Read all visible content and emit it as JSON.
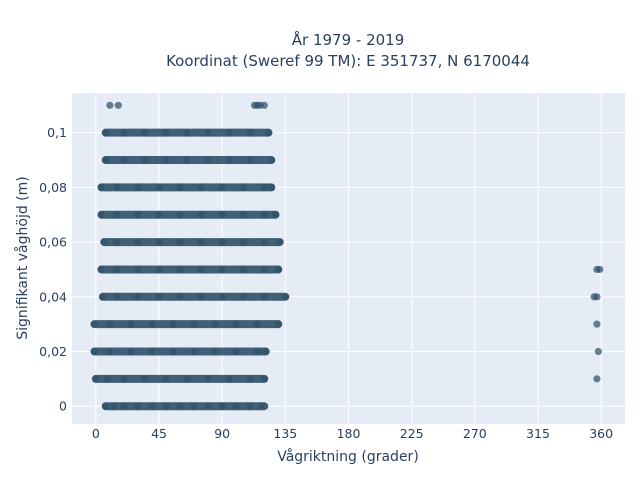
{
  "chart_data": {
    "type": "scatter",
    "title_line1": "År 1979 - 2019",
    "title_line2": "Koordinat (Sweref 99 TM): E 351737, N 6170044",
    "xlabel": "Vågriktning (grader)",
    "ylabel": "Signifikant våghöjd (m)",
    "xlim": [
      -17,
      377
    ],
    "ylim": [
      -0.0065,
      0.1145
    ],
    "xticks": [
      0,
      45,
      90,
      135,
      180,
      225,
      270,
      315,
      360
    ],
    "xtick_labels": [
      "0",
      "45",
      "90",
      "135",
      "180",
      "225",
      "270",
      "315",
      "360"
    ],
    "yticks": [
      0,
      0.02,
      0.04,
      0.06,
      0.08,
      0.1
    ],
    "ytick_labels": [
      "0",
      "0,02",
      "0,04",
      "0,06",
      "0,08",
      "0,1"
    ],
    "grid": true,
    "marker_color": "#2f5168",
    "plot_bg": "#e5ecf6",
    "series": [
      {
        "points": [
          [
            7,
            0
          ],
          [
            13,
            0
          ],
          [
            20,
            0
          ],
          [
            30,
            0
          ],
          [
            40,
            0
          ],
          [
            50,
            0
          ],
          [
            60,
            0
          ],
          [
            70,
            0
          ],
          [
            80,
            0
          ],
          [
            90,
            0
          ],
          [
            100,
            0
          ],
          [
            110,
            0
          ],
          [
            118,
            0
          ],
          [
            0,
            0.01
          ],
          [
            8,
            0.01
          ],
          [
            20,
            0.01
          ],
          [
            35,
            0.01
          ],
          [
            50,
            0.01
          ],
          [
            65,
            0.01
          ],
          [
            80,
            0.01
          ],
          [
            95,
            0.01
          ],
          [
            110,
            0.01
          ],
          [
            120,
            0.01
          ],
          [
            357,
            0.01
          ],
          [
            -1,
            0.02
          ],
          [
            10,
            0.02
          ],
          [
            25,
            0.02
          ],
          [
            40,
            0.02
          ],
          [
            55,
            0.02
          ],
          [
            70,
            0.02
          ],
          [
            85,
            0.02
          ],
          [
            100,
            0.02
          ],
          [
            115,
            0.02
          ],
          [
            121,
            0.02
          ],
          [
            358,
            0.02
          ],
          [
            -1,
            0.03
          ],
          [
            10,
            0.03
          ],
          [
            25,
            0.03
          ],
          [
            40,
            0.03
          ],
          [
            55,
            0.03
          ],
          [
            70,
            0.03
          ],
          [
            85,
            0.03
          ],
          [
            100,
            0.03
          ],
          [
            115,
            0.03
          ],
          [
            130,
            0.03
          ],
          [
            357,
            0.03
          ],
          [
            5,
            0.04
          ],
          [
            15,
            0.04
          ],
          [
            30,
            0.04
          ],
          [
            45,
            0.04
          ],
          [
            60,
            0.04
          ],
          [
            75,
            0.04
          ],
          [
            90,
            0.04
          ],
          [
            105,
            0.04
          ],
          [
            120,
            0.04
          ],
          [
            135,
            0.04
          ],
          [
            355,
            0.04
          ],
          [
            357,
            0.04
          ],
          [
            4,
            0.05
          ],
          [
            15,
            0.05
          ],
          [
            30,
            0.05
          ],
          [
            45,
            0.05
          ],
          [
            60,
            0.05
          ],
          [
            75,
            0.05
          ],
          [
            90,
            0.05
          ],
          [
            105,
            0.05
          ],
          [
            120,
            0.05
          ],
          [
            130,
            0.05
          ],
          [
            357,
            0.05
          ],
          [
            359,
            0.05
          ],
          [
            6,
            0.06
          ],
          [
            15,
            0.06
          ],
          [
            30,
            0.06
          ],
          [
            45,
            0.06
          ],
          [
            60,
            0.06
          ],
          [
            75,
            0.06
          ],
          [
            90,
            0.06
          ],
          [
            105,
            0.06
          ],
          [
            120,
            0.06
          ],
          [
            131,
            0.06
          ],
          [
            4,
            0.07
          ],
          [
            15,
            0.07
          ],
          [
            30,
            0.07
          ],
          [
            45,
            0.07
          ],
          [
            60,
            0.07
          ],
          [
            75,
            0.07
          ],
          [
            90,
            0.07
          ],
          [
            105,
            0.07
          ],
          [
            120,
            0.07
          ],
          [
            128,
            0.07
          ],
          [
            4,
            0.08
          ],
          [
            15,
            0.08
          ],
          [
            30,
            0.08
          ],
          [
            45,
            0.08
          ],
          [
            60,
            0.08
          ],
          [
            75,
            0.08
          ],
          [
            90,
            0.08
          ],
          [
            105,
            0.08
          ],
          [
            120,
            0.08
          ],
          [
            125,
            0.08
          ],
          [
            7,
            0.09
          ],
          [
            20,
            0.09
          ],
          [
            35,
            0.09
          ],
          [
            50,
            0.09
          ],
          [
            65,
            0.09
          ],
          [
            80,
            0.09
          ],
          [
            95,
            0.09
          ],
          [
            110,
            0.09
          ],
          [
            125,
            0.09
          ],
          [
            7,
            0.1
          ],
          [
            20,
            0.1
          ],
          [
            35,
            0.1
          ],
          [
            50,
            0.1
          ],
          [
            65,
            0.1
          ],
          [
            80,
            0.1
          ],
          [
            95,
            0.1
          ],
          [
            110,
            0.1
          ],
          [
            123,
            0.1
          ],
          [
            10,
            0.11
          ],
          [
            16,
            0.11
          ],
          [
            113,
            0.11
          ],
          [
            115,
            0.11
          ],
          [
            117,
            0.11
          ],
          [
            120,
            0.11
          ]
        ],
        "bands": [
          [
            0,
            7,
            120
          ],
          [
            0.01,
            0,
            120
          ],
          [
            0.02,
            -1,
            121
          ],
          [
            0.03,
            -1,
            130
          ],
          [
            0.04,
            5,
            135
          ],
          [
            0.05,
            4,
            130
          ],
          [
            0.06,
            6,
            131
          ],
          [
            0.07,
            4,
            128
          ],
          [
            0.08,
            4,
            125
          ],
          [
            0.09,
            7,
            125
          ],
          [
            0.1,
            7,
            123
          ]
        ]
      }
    ]
  }
}
